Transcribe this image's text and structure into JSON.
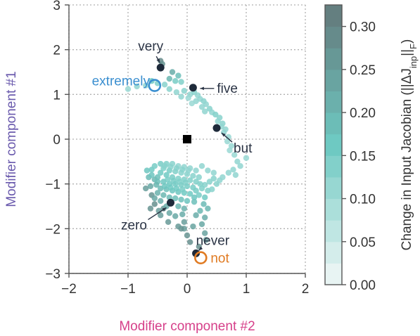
{
  "chart_data": {
    "type": "scatter",
    "xlabel": "Modifier component #2",
    "ylabel": "Modifier component #1",
    "xlim": [
      -2,
      2
    ],
    "ylim": [
      -3,
      3
    ],
    "xticks": [
      -2,
      -1,
      0,
      1,
      2
    ],
    "xtick_labels": [
      "−2",
      "−1",
      "0",
      "1",
      "2"
    ],
    "yticks": [
      -3,
      -2,
      -1,
      0,
      1,
      2,
      3
    ],
    "ytick_labels": [
      "−3",
      "−2",
      "−1",
      "0",
      "1",
      "2",
      "3"
    ],
    "grid": true,
    "colors": {
      "xlabel": "#d6408a",
      "ylabel": "#6a5aad",
      "highlight_blue": "#3b8fd0",
      "highlight_orange": "#e07b23",
      "dark_point": "#1e2a3a",
      "annotation_text": "#2b3445",
      "colormap_low": "#f2f8f7",
      "colormap_mid": "#6ec9c2",
      "colormap_high": "#63797a"
    },
    "colorbar": {
      "label": "Change in Input Jacobian (||ΔJ_inp||_F)",
      "label_parts": {
        "prefix": "Change in Input Jacobian (||ΔJ",
        "subscript": "inp",
        "middle": "||",
        "subscript2": "F",
        "suffix": ")"
      },
      "min": 0.0,
      "max": 0.325,
      "ticks": [
        0.0,
        0.05,
        0.1,
        0.15,
        0.2,
        0.25,
        0.3
      ],
      "tick_labels": [
        "0.00",
        "0.05",
        "0.10",
        "0.15",
        "0.20",
        "0.25",
        "0.30"
      ],
      "levels": 13
    },
    "origin_marker": {
      "x": 0.0,
      "y": 0.0,
      "shape": "square"
    },
    "labeled_points": [
      {
        "text": "very",
        "x": -0.45,
        "y": 1.6,
        "style": "dark"
      },
      {
        "text": "extremely",
        "x": -0.55,
        "y": 1.2,
        "style": "blue-ring"
      },
      {
        "text": "five",
        "x": 0.1,
        "y": 1.15,
        "style": "dark"
      },
      {
        "text": "but",
        "x": 0.5,
        "y": 0.25,
        "style": "dark"
      },
      {
        "text": "zero",
        "x": -0.28,
        "y": -1.42,
        "style": "dark"
      },
      {
        "text": "never",
        "x": 0.15,
        "y": -2.55,
        "style": "dark"
      },
      {
        "text": "not",
        "x": 0.23,
        "y": -2.65,
        "style": "orange-ring"
      }
    ],
    "points": [
      [
        -0.45,
        1.75,
        0.29
      ],
      [
        -0.42,
        1.68,
        0.27
      ],
      [
        -0.25,
        1.5,
        0.22
      ],
      [
        -0.15,
        1.42,
        0.18
      ],
      [
        -0.3,
        1.35,
        0.2
      ],
      [
        -0.6,
        1.3,
        0.16
      ],
      [
        -0.5,
        1.25,
        0.14
      ],
      [
        -0.38,
        1.22,
        0.13
      ],
      [
        -0.2,
        1.3,
        0.15
      ],
      [
        -0.1,
        1.28,
        0.14
      ],
      [
        -0.7,
        1.2,
        0.12
      ],
      [
        -1.0,
        1.12,
        0.11
      ],
      [
        -0.85,
        1.18,
        0.12
      ],
      [
        -0.3,
        1.12,
        0.13
      ],
      [
        -0.18,
        1.05,
        0.12
      ],
      [
        -0.05,
        1.08,
        0.13
      ],
      [
        0.05,
        1.0,
        0.12
      ],
      [
        0.12,
        1.05,
        0.13
      ],
      [
        0.18,
        0.98,
        0.12
      ],
      [
        -0.1,
        0.95,
        0.12
      ],
      [
        0.02,
        0.92,
        0.11
      ],
      [
        0.22,
        0.9,
        0.12
      ],
      [
        0.28,
        0.85,
        0.13
      ],
      [
        0.15,
        0.85,
        0.12
      ],
      [
        0.32,
        0.78,
        0.12
      ],
      [
        0.08,
        0.8,
        0.11
      ],
      [
        0.25,
        0.72,
        0.12
      ],
      [
        0.38,
        0.68,
        0.13
      ],
      [
        0.42,
        0.6,
        0.12
      ],
      [
        0.48,
        0.55,
        0.14
      ],
      [
        0.3,
        0.62,
        0.12
      ],
      [
        0.55,
        0.48,
        0.13
      ],
      [
        0.52,
        0.4,
        0.12
      ],
      [
        0.6,
        0.35,
        0.13
      ],
      [
        0.58,
        0.28,
        0.12
      ],
      [
        0.65,
        0.22,
        0.12
      ],
      [
        0.62,
        0.15,
        0.12
      ],
      [
        0.7,
        0.05,
        0.11
      ],
      [
        0.68,
        -0.05,
        0.11
      ],
      [
        0.75,
        -0.15,
        0.11
      ],
      [
        0.72,
        -0.25,
        0.11
      ],
      [
        0.8,
        -0.35,
        0.11
      ],
      [
        0.85,
        -0.5,
        0.12
      ],
      [
        1.0,
        -0.42,
        0.11
      ],
      [
        0.9,
        -0.6,
        0.12
      ],
      [
        0.78,
        -0.68,
        0.12
      ],
      [
        0.7,
        -0.75,
        0.12
      ],
      [
        0.82,
        -0.8,
        0.12
      ],
      [
        0.6,
        -0.85,
        0.12
      ],
      [
        0.55,
        -0.92,
        0.12
      ],
      [
        0.45,
        -0.88,
        0.13
      ],
      [
        0.5,
        -1.0,
        0.13
      ],
      [
        0.38,
        -0.95,
        0.13
      ],
      [
        0.3,
        -1.02,
        0.13
      ],
      [
        0.25,
        -1.1,
        0.14
      ],
      [
        0.35,
        -1.15,
        0.14
      ],
      [
        0.42,
        -1.12,
        0.13
      ],
      [
        0.2,
        -1.25,
        0.15
      ],
      [
        0.3,
        -1.3,
        0.16
      ],
      [
        0.12,
        -1.4,
        0.18
      ],
      [
        0.28,
        -1.45,
        0.19
      ],
      [
        0.22,
        -1.6,
        0.2
      ],
      [
        0.35,
        -1.55,
        0.2
      ],
      [
        0.15,
        -1.7,
        0.22
      ],
      [
        0.3,
        -1.75,
        0.22
      ],
      [
        -0.05,
        -1.85,
        0.25
      ],
      [
        -0.05,
        -2.0,
        0.25
      ],
      [
        0.0,
        -2.15,
        0.27
      ],
      [
        0.3,
        -2.1,
        0.24
      ],
      [
        0.32,
        -2.25,
        0.25
      ],
      [
        0.05,
        -2.3,
        0.28
      ],
      [
        0.2,
        -2.4,
        0.28
      ],
      [
        -0.1,
        -2.0,
        0.27
      ],
      [
        -0.4,
        -1.55,
        0.26
      ],
      [
        -0.55,
        -1.45,
        0.28
      ],
      [
        -0.6,
        -1.25,
        0.27
      ],
      [
        -0.7,
        -1.1,
        0.25
      ],
      [
        -0.62,
        -1.05,
        0.23
      ],
      [
        -0.55,
        -0.9,
        0.2
      ],
      [
        -0.5,
        -0.85,
        0.18
      ],
      [
        -0.65,
        -0.85,
        0.19
      ],
      [
        -0.68,
        -0.7,
        0.17
      ],
      [
        -0.6,
        -0.68,
        0.16
      ],
      [
        -0.45,
        -0.55,
        0.15
      ],
      [
        -0.35,
        -0.55,
        0.14
      ],
      [
        -0.25,
        -0.55,
        0.13
      ],
      [
        -0.15,
        -0.6,
        0.12
      ],
      [
        -0.05,
        -0.62,
        0.12
      ],
      [
        0.05,
        -0.65,
        0.12
      ],
      [
        0.15,
        -0.7,
        0.12
      ],
      [
        -0.4,
        -0.65,
        0.14
      ],
      [
        -0.3,
        -0.7,
        0.15
      ],
      [
        -0.2,
        -0.72,
        0.14
      ],
      [
        -0.1,
        -0.75,
        0.13
      ],
      [
        0.0,
        -0.78,
        0.13
      ],
      [
        0.1,
        -0.82,
        0.13
      ],
      [
        0.2,
        -0.85,
        0.13
      ],
      [
        -0.45,
        -0.75,
        0.16
      ],
      [
        -0.35,
        -0.8,
        0.16
      ],
      [
        -0.25,
        -0.85,
        0.15
      ],
      [
        -0.15,
        -0.88,
        0.14
      ],
      [
        -0.05,
        -0.9,
        0.14
      ],
      [
        0.05,
        -0.92,
        0.14
      ],
      [
        0.15,
        -0.95,
        0.14
      ],
      [
        -0.5,
        -0.95,
        0.18
      ],
      [
        -0.4,
        -0.95,
        0.17
      ],
      [
        -0.3,
        -1.0,
        0.16
      ],
      [
        -0.2,
        -1.0,
        0.16
      ],
      [
        -0.1,
        -1.02,
        0.15
      ],
      [
        0.0,
        -1.05,
        0.15
      ],
      [
        0.1,
        -1.08,
        0.15
      ],
      [
        -0.45,
        -1.1,
        0.19
      ],
      [
        -0.35,
        -1.12,
        0.18
      ],
      [
        -0.25,
        -1.15,
        0.17
      ],
      [
        -0.15,
        -1.18,
        0.17
      ],
      [
        -0.05,
        -1.2,
        0.16
      ],
      [
        0.05,
        -1.22,
        0.16
      ],
      [
        -0.5,
        -1.2,
        0.21
      ],
      [
        -0.4,
        -1.25,
        0.2
      ],
      [
        -0.3,
        -1.3,
        0.19
      ],
      [
        -0.2,
        -1.32,
        0.18
      ],
      [
        -0.1,
        -1.35,
        0.18
      ],
      [
        0.0,
        -1.38,
        0.17
      ],
      [
        -0.55,
        -1.32,
        0.23
      ],
      [
        -0.45,
        -1.38,
        0.22
      ],
      [
        -0.35,
        -1.5,
        0.22
      ],
      [
        -0.15,
        -1.5,
        0.2
      ],
      [
        -0.05,
        -1.55,
        0.21
      ],
      [
        -0.3,
        -1.65,
        0.23
      ],
      [
        -0.45,
        -1.7,
        0.25
      ],
      [
        -0.2,
        -1.72,
        0.23
      ],
      [
        -0.08,
        -1.68,
        0.22
      ],
      [
        -0.38,
        -0.6,
        0.13
      ],
      [
        -0.28,
        -0.62,
        0.13
      ],
      [
        -0.18,
        -0.65,
        0.13
      ],
      [
        -0.08,
        -0.68,
        0.13
      ],
      [
        0.02,
        -0.7,
        0.12
      ],
      [
        -0.33,
        -0.9,
        0.15
      ],
      [
        -0.23,
        -0.93,
        0.15
      ],
      [
        -0.13,
        -0.95,
        0.14
      ],
      [
        -0.03,
        -0.97,
        0.14
      ],
      [
        -0.38,
        -1.05,
        0.17
      ],
      [
        -0.28,
        -1.08,
        0.16
      ],
      [
        -0.18,
        -1.1,
        0.16
      ],
      [
        -0.08,
        -1.12,
        0.15
      ],
      [
        0.25,
        -0.6,
        0.12
      ],
      [
        0.35,
        -0.7,
        0.12
      ],
      [
        0.45,
        -0.75,
        0.12
      ],
      [
        -0.55,
        -0.6,
        0.15
      ],
      [
        -0.6,
        -0.8,
        0.17
      ],
      [
        -0.52,
        -1.02,
        0.2
      ],
      [
        0.15,
        -1.15,
        0.15
      ],
      [
        0.22,
        -1.0,
        0.14
      ],
      [
        0.12,
        -1.3,
        0.17
      ],
      [
        -0.62,
        -1.55,
        0.27
      ],
      [
        -0.48,
        -1.6,
        0.25
      ],
      [
        -0.32,
        -1.85,
        0.26
      ],
      [
        -0.15,
        -1.95,
        0.26
      ],
      [
        0.1,
        -1.95,
        0.24
      ],
      [
        0.25,
        -1.9,
        0.23
      ]
    ]
  }
}
